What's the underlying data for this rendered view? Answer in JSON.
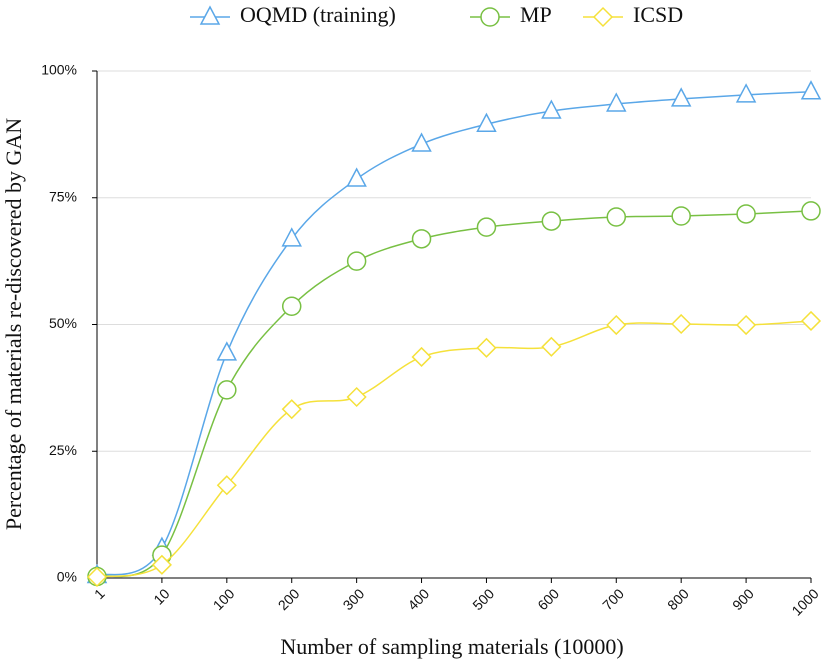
{
  "chart_data": {
    "type": "line",
    "x_label": "Number of sampling materials (10000)",
    "y_label": "Percentage of materials re-discovered by GAN",
    "categories": [
      "1",
      "10",
      "100",
      "200",
      "300",
      "400",
      "500",
      "600",
      "700",
      "800",
      "900",
      "1000"
    ],
    "ylim": [
      0,
      100
    ],
    "yticks": [
      {
        "value": 0,
        "label": "0%"
      },
      {
        "value": 25,
        "label": "25%"
      },
      {
        "value": 50,
        "label": "50%"
      },
      {
        "value": 75,
        "label": "75%"
      },
      {
        "value": 100,
        "label": "100%"
      }
    ],
    "grid": true,
    "series": [
      {
        "name": "OQMD (training)",
        "color": "#5aa7e8",
        "marker": "triangle",
        "values": [
          0.5,
          5.9,
          44.4,
          66.9,
          78.7,
          85.6,
          89.5,
          92.1,
          93.5,
          94.5,
          95.3,
          95.9
        ]
      },
      {
        "name": "MP",
        "color": "#78c043",
        "marker": "circle",
        "values": [
          0.3,
          4.5,
          37.1,
          53.6,
          62.5,
          66.9,
          69.2,
          70.4,
          71.2,
          71.4,
          71.8,
          72.4
        ]
      },
      {
        "name": "ICSD",
        "color": "#f5e13a",
        "marker": "diamond",
        "values": [
          0.2,
          2.6,
          18.3,
          33.3,
          35.7,
          43.6,
          45.4,
          45.6,
          49.9,
          50.1,
          49.9,
          50.7
        ]
      }
    ]
  }
}
